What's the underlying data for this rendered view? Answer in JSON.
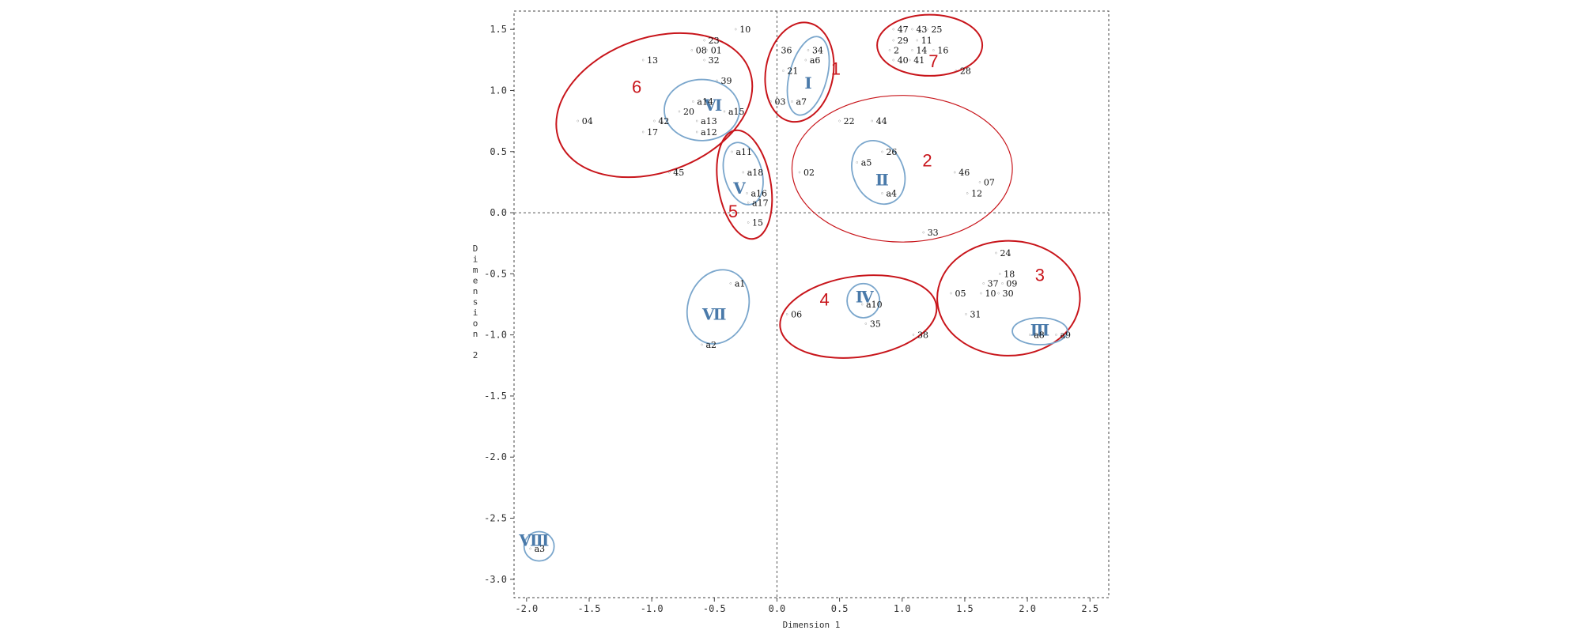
{
  "chart_data": {
    "type": "scatter",
    "title": "",
    "xlabel": "Dimension 1",
    "ylabel": "Dimension 2",
    "xlim": [
      -2.1,
      2.65
    ],
    "ylim": [
      -3.15,
      1.65
    ],
    "xticks": [
      "-2.0",
      "-1.5",
      "-1.0",
      "-0.5",
      "0.0",
      "0.5",
      "1.0",
      "1.5",
      "2.0",
      "2.5"
    ],
    "xtick_values": [
      -2.0,
      -1.5,
      -1.0,
      -0.5,
      0.0,
      0.5,
      1.0,
      1.5,
      2.0,
      2.5
    ],
    "yticks": [
      "1.5",
      "1.0",
      "0.5",
      "0.0",
      "-0.5",
      "-1.0",
      "-1.5",
      "-2.0",
      "-2.5",
      "-3.0"
    ],
    "ytick_values": [
      1.5,
      1.0,
      0.5,
      0.0,
      -0.5,
      -1.0,
      -1.5,
      -2.0,
      -2.5,
      -3.0
    ],
    "marker_symbol": "◦",
    "reference_lines": {
      "x": 0.0,
      "y": 0.0
    },
    "colors": {
      "group": "#c8151b",
      "group_thin": "#d94040",
      "cluster": "#4a7aaa",
      "cluster_light": "#7aa6cc"
    },
    "points": [
      {
        "label": "47",
        "x": 0.93,
        "y": 1.5
      },
      {
        "label": "43",
        "x": 1.08,
        "y": 1.5
      },
      {
        "label": "25",
        "x": 1.2,
        "y": 1.5
      },
      {
        "label": "29",
        "x": 0.93,
        "y": 1.41
      },
      {
        "label": "11",
        "x": 1.12,
        "y": 1.41
      },
      {
        "label": "2",
        "x": 0.9,
        "y": 1.33
      },
      {
        "label": "14",
        "x": 1.08,
        "y": 1.33
      },
      {
        "label": "16",
        "x": 1.25,
        "y": 1.33
      },
      {
        "label": "40",
        "x": 0.93,
        "y": 1.25
      },
      {
        "label": "41",
        "x": 1.06,
        "y": 1.25
      },
      {
        "label": "28",
        "x": 1.43,
        "y": 1.16
      },
      {
        "label": "36",
        "x": 0.0,
        "y": 1.33
      },
      {
        "label": "34",
        "x": 0.25,
        "y": 1.33
      },
      {
        "label": "a6",
        "x": 0.23,
        "y": 1.25
      },
      {
        "label": "21",
        "x": 0.05,
        "y": 1.16
      },
      {
        "label": "03",
        "x": -0.05,
        "y": 0.91
      },
      {
        "label": "a7",
        "x": 0.12,
        "y": 0.91
      },
      {
        "label": "10",
        "x": -0.33,
        "y": 1.5
      },
      {
        "label": "23",
        "x": -0.58,
        "y": 1.41
      },
      {
        "label": "08",
        "x": -0.68,
        "y": 1.33
      },
      {
        "label": "01",
        "x": -0.56,
        "y": 1.33
      },
      {
        "label": "13",
        "x": -1.07,
        "y": 1.25
      },
      {
        "label": "32",
        "x": -0.58,
        "y": 1.25
      },
      {
        "label": "39",
        "x": -0.48,
        "y": 1.08
      },
      {
        "label": "a14",
        "x": -0.67,
        "y": 0.91
      },
      {
        "label": "20",
        "x": -0.78,
        "y": 0.83
      },
      {
        "label": "a15",
        "x": -0.42,
        "y": 0.83
      },
      {
        "label": "04",
        "x": -1.59,
        "y": 0.75
      },
      {
        "label": "42",
        "x": -0.98,
        "y": 0.75
      },
      {
        "label": "a13",
        "x": -0.64,
        "y": 0.75
      },
      {
        "label": "17",
        "x": -1.07,
        "y": 0.66
      },
      {
        "label": "a12",
        "x": -0.64,
        "y": 0.66
      },
      {
        "label": "45",
        "x": -0.86,
        "y": 0.33
      },
      {
        "label": "a11",
        "x": -0.36,
        "y": 0.5
      },
      {
        "label": "a18",
        "x": -0.27,
        "y": 0.33
      },
      {
        "label": "a16",
        "x": -0.24,
        "y": 0.16
      },
      {
        "label": "a17",
        "x": -0.23,
        "y": 0.08
      },
      {
        "label": "15",
        "x": -0.23,
        "y": -0.08
      },
      {
        "label": "22",
        "x": 0.5,
        "y": 0.75
      },
      {
        "label": "44",
        "x": 0.76,
        "y": 0.75
      },
      {
        "label": "26",
        "x": 0.84,
        "y": 0.5
      },
      {
        "label": "a5",
        "x": 0.64,
        "y": 0.41
      },
      {
        "label": "02",
        "x": 0.18,
        "y": 0.33
      },
      {
        "label": "46",
        "x": 1.42,
        "y": 0.33
      },
      {
        "label": "07",
        "x": 1.62,
        "y": 0.25
      },
      {
        "label": "a4",
        "x": 0.84,
        "y": 0.16
      },
      {
        "label": "12",
        "x": 1.52,
        "y": 0.16
      },
      {
        "label": "33",
        "x": 1.17,
        "y": -0.16
      },
      {
        "label": "24",
        "x": 1.75,
        "y": -0.33
      },
      {
        "label": "18",
        "x": 1.78,
        "y": -0.5
      },
      {
        "label": "37",
        "x": 1.65,
        "y": -0.58
      },
      {
        "label": "09",
        "x": 1.8,
        "y": -0.58
      },
      {
        "label": "05",
        "x": 1.39,
        "y": -0.66
      },
      {
        "label": "10",
        "x": 1.63,
        "y": -0.66
      },
      {
        "label": "30",
        "x": 1.77,
        "y": -0.66
      },
      {
        "label": "31",
        "x": 1.51,
        "y": -0.83
      },
      {
        "label": "a8",
        "x": 2.02,
        "y": -1.0
      },
      {
        "label": "a9",
        "x": 2.23,
        "y": -1.0
      },
      {
        "label": "a1",
        "x": -0.37,
        "y": -0.58
      },
      {
        "label": "a2",
        "x": -0.6,
        "y": -1.08
      },
      {
        "label": "06",
        "x": 0.08,
        "y": -0.83
      },
      {
        "label": "a10",
        "x": 0.68,
        "y": -0.75
      },
      {
        "label": "35",
        "x": 0.71,
        "y": -0.91
      },
      {
        "label": "38",
        "x": 1.09,
        "y": -1.0
      },
      {
        "label": "a3",
        "x": -1.97,
        "y": -2.75
      }
    ],
    "groups": [
      {
        "label": "1",
        "cx": 0.18,
        "cy": 1.15,
        "rx": 0.27,
        "ry": 0.41,
        "angle": 10,
        "label_x": 0.47,
        "label_y": 1.13
      },
      {
        "label": "2",
        "cx": 1.0,
        "cy": 0.36,
        "rx": 0.88,
        "ry": 0.6,
        "angle": 0,
        "label_x": 1.2,
        "label_y": 0.38
      },
      {
        "label": "3",
        "cx": 1.85,
        "cy": -0.7,
        "rx": 0.57,
        "ry": 0.47,
        "angle": 0,
        "label_x": 2.1,
        "label_y": -0.56
      },
      {
        "label": "4",
        "cx": 0.65,
        "cy": -0.85,
        "rx": 0.63,
        "ry": 0.33,
        "angle": -8,
        "label_x": 0.38,
        "label_y": -0.76
      },
      {
        "label": "5",
        "cx": -0.26,
        "cy": 0.23,
        "rx": 0.21,
        "ry": 0.45,
        "angle": -10,
        "label_x": -0.35,
        "label_y": -0.04
      },
      {
        "label": "6",
        "cx": -0.98,
        "cy": 0.88,
        "rx": 0.81,
        "ry": 0.55,
        "angle": -20,
        "label_x": -1.12,
        "label_y": 0.98
      },
      {
        "label": "7",
        "cx": 1.22,
        "cy": 1.37,
        "rx": 0.42,
        "ry": 0.25,
        "angle": 0,
        "label_x": 1.25,
        "label_y": 1.19
      }
    ],
    "clusters": [
      {
        "label": "Ⅰ",
        "cx": 0.25,
        "cy": 1.12,
        "rx": 0.15,
        "ry": 0.33,
        "angle": 15,
        "label_x": 0.25,
        "label_y": 1.06
      },
      {
        "label": "Ⅱ",
        "cx": 0.81,
        "cy": 0.33,
        "rx": 0.2,
        "ry": 0.27,
        "angle": -25,
        "label_x": 0.84,
        "label_y": 0.27
      },
      {
        "label": "Ⅲ",
        "cx": 2.1,
        "cy": -0.97,
        "rx": 0.22,
        "ry": 0.11,
        "angle": 0,
        "label_x": 2.1,
        "label_y": -0.96
      },
      {
        "label": "Ⅳ",
        "cx": 0.69,
        "cy": -0.72,
        "rx": 0.13,
        "ry": 0.14,
        "angle": 0,
        "label_x": 0.7,
        "label_y": -0.69
      },
      {
        "label": "Ⅴ",
        "cx": -0.27,
        "cy": 0.32,
        "rx": 0.15,
        "ry": 0.26,
        "angle": -15,
        "label_x": -0.3,
        "label_y": 0.2
      },
      {
        "label": "Ⅵ",
        "cx": -0.6,
        "cy": 0.84,
        "rx": 0.3,
        "ry": 0.25,
        "angle": 0,
        "label_x": -0.51,
        "label_y": 0.88
      },
      {
        "label": "Ⅶ",
        "cx": -0.47,
        "cy": -0.77,
        "rx": 0.24,
        "ry": 0.31,
        "angle": 20,
        "label_x": -0.5,
        "label_y": -0.83
      },
      {
        "label": "Ⅷ",
        "cx": -1.9,
        "cy": -2.73,
        "rx": 0.12,
        "ry": 0.12,
        "angle": 0,
        "label_x": -1.94,
        "label_y": -2.68
      }
    ]
  }
}
